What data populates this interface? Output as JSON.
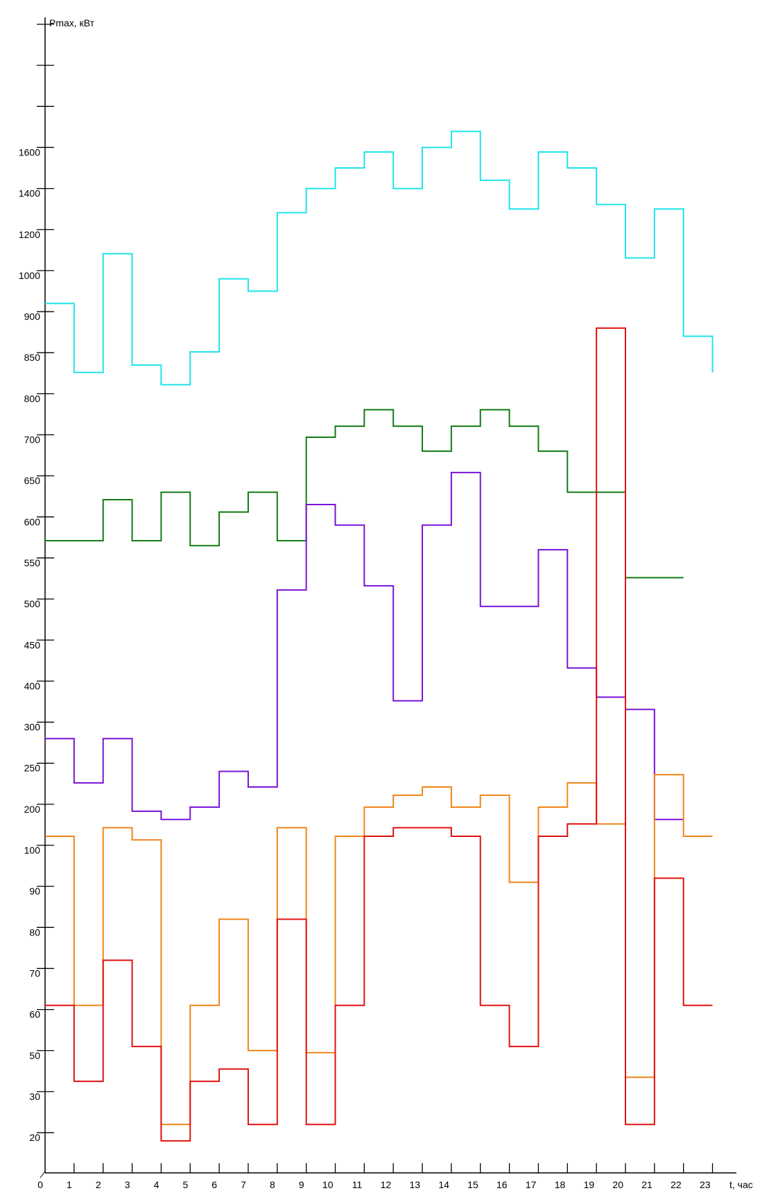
{
  "chart_data": {
    "type": "line",
    "subtype": "step",
    "title": "",
    "ylabel": "Pmax, кВт",
    "xlabel": "t, час",
    "x_ticks": [
      0,
      1,
      2,
      3,
      4,
      5,
      6,
      7,
      8,
      9,
      10,
      11,
      12,
      13,
      14,
      15,
      16,
      17,
      18,
      19,
      20,
      21,
      22,
      23
    ],
    "y_tick_labels": [
      "1600",
      "1400",
      "1200",
      "1000",
      "900",
      "850",
      "800",
      "700",
      "650",
      "600",
      "550",
      "500",
      "450",
      "400",
      "300",
      "250",
      "200",
      "100",
      "90",
      "80",
      "70",
      "60",
      "50",
      "30",
      "20"
    ],
    "y_tick_values": [
      1600,
      1400,
      1200,
      1000,
      900,
      850,
      800,
      700,
      650,
      600,
      550,
      500,
      450,
      400,
      300,
      250,
      200,
      100,
      90,
      80,
      70,
      60,
      50,
      30,
      20
    ],
    "y_unlabeled_ticks_above": 3,
    "grid": false,
    "legend": "none",
    "series": [
      {
        "name": "cyan",
        "color": "#1fe3e8",
        "values": [
          920,
          826,
          1082,
          835,
          811,
          851,
          980,
          950,
          1282,
          1400,
          1500,
          1578,
          1400,
          1600,
          1678,
          1440,
          1300,
          1578,
          1500,
          1322,
          1062,
          1300,
          870
        ],
        "end_value": 826
      },
      {
        "name": "green",
        "color": "#117a11",
        "values": [
          571,
          571,
          621,
          571,
          630,
          565,
          606,
          630,
          571,
          697,
          721,
          761,
          721,
          680,
          721,
          761,
          721,
          680,
          630,
          630,
          526,
          526
        ]
      },
      {
        "name": "purple",
        "color": "#7a12d8",
        "values": [
          280,
          226,
          280,
          183,
          163,
          193,
          240,
          221,
          511,
          615,
          590,
          516,
          352,
          590,
          654,
          491,
          491,
          560,
          416,
          361,
          331,
          163
        ]
      },
      {
        "name": "orange",
        "color": "#f08518",
        "values": [
          122,
          61,
          143,
          113,
          22,
          61,
          82,
          50,
          143,
          49,
          122,
          193,
          211,
          221,
          193,
          211,
          91,
          193,
          226,
          152,
          37,
          236,
          122
        ]
      },
      {
        "name": "red",
        "color": "#e0100f",
        "values": [
          61,
          35,
          72,
          51,
          18,
          35,
          41,
          22,
          82,
          22,
          61,
          122,
          143,
          143,
          122,
          61,
          51,
          122,
          152,
          880,
          22,
          92,
          61
        ]
      }
    ]
  }
}
